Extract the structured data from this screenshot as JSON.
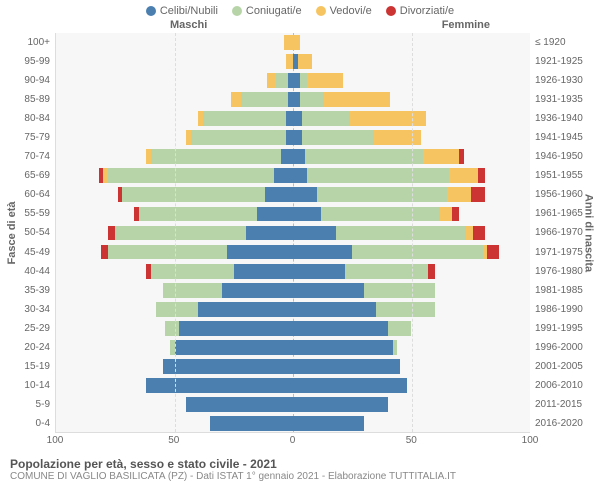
{
  "legend": [
    {
      "label": "Celibi/Nubili",
      "color": "#4a7fb0"
    },
    {
      "label": "Coniugati/e",
      "color": "#b7d4a8"
    },
    {
      "label": "Vedovi/e",
      "color": "#f6c561"
    },
    {
      "label": "Divorziati/e",
      "color": "#cc3333"
    }
  ],
  "side_labels": {
    "left": "Maschi",
    "right": "Femmine"
  },
  "axis_titles": {
    "left": "Fasce di età",
    "right": "Anni di nascita"
  },
  "x_axis": {
    "max": 100,
    "ticks": [
      100,
      50,
      0,
      50,
      100
    ]
  },
  "background_color": "#f7f7f7",
  "grid_color": "#dddddd",
  "center_line_color": "#bbbbbb",
  "footer": {
    "title": "Popolazione per età, sesso e stato civile - 2021",
    "sub": "COMUNE DI VAGLIO BASILICATA (PZ) - Dati ISTAT 1° gennaio 2021 - Elaborazione TUTTITALIA.IT"
  },
  "rows": [
    {
      "age": "100+",
      "birth": "≤ 1920",
      "m": [
        0,
        0,
        4,
        0
      ],
      "f": [
        0,
        0,
        3,
        0
      ]
    },
    {
      "age": "95-99",
      "birth": "1921-1925",
      "m": [
        0,
        0,
        3,
        0
      ],
      "f": [
        2,
        0,
        6,
        0
      ]
    },
    {
      "age": "90-94",
      "birth": "1926-1930",
      "m": [
        2,
        5,
        4,
        0
      ],
      "f": [
        3,
        3,
        15,
        0
      ]
    },
    {
      "age": "85-89",
      "birth": "1931-1935",
      "m": [
        2,
        20,
        4,
        0
      ],
      "f": [
        3,
        10,
        28,
        0
      ]
    },
    {
      "age": "80-84",
      "birth": "1936-1940",
      "m": [
        3,
        35,
        2,
        0
      ],
      "f": [
        4,
        20,
        32,
        0
      ]
    },
    {
      "age": "75-79",
      "birth": "1941-1945",
      "m": [
        3,
        40,
        2,
        0
      ],
      "f": [
        4,
        30,
        20,
        0
      ]
    },
    {
      "age": "70-74",
      "birth": "1946-1950",
      "m": [
        5,
        55,
        2,
        0
      ],
      "f": [
        5,
        50,
        15,
        2
      ]
    },
    {
      "age": "65-69",
      "birth": "1951-1955",
      "m": [
        8,
        70,
        2,
        2
      ],
      "f": [
        6,
        60,
        12,
        3
      ]
    },
    {
      "age": "60-64",
      "birth": "1956-1960",
      "m": [
        12,
        60,
        0,
        2
      ],
      "f": [
        10,
        55,
        10,
        6
      ]
    },
    {
      "age": "55-59",
      "birth": "1961-1965",
      "m": [
        15,
        50,
        0,
        2
      ],
      "f": [
        12,
        50,
        5,
        3
      ]
    },
    {
      "age": "50-54",
      "birth": "1966-1970",
      "m": [
        20,
        55,
        0,
        3
      ],
      "f": [
        18,
        55,
        3,
        5
      ]
    },
    {
      "age": "45-49",
      "birth": "1971-1975",
      "m": [
        28,
        50,
        0,
        3
      ],
      "f": [
        25,
        55,
        2,
        5
      ]
    },
    {
      "age": "40-44",
      "birth": "1976-1980",
      "m": [
        25,
        35,
        0,
        2
      ],
      "f": [
        22,
        35,
        0,
        3
      ]
    },
    {
      "age": "35-39",
      "birth": "1981-1985",
      "m": [
        30,
        25,
        0,
        0
      ],
      "f": [
        30,
        30,
        0,
        0
      ]
    },
    {
      "age": "30-34",
      "birth": "1986-1990",
      "m": [
        40,
        18,
        0,
        0
      ],
      "f": [
        35,
        25,
        0,
        0
      ]
    },
    {
      "age": "25-29",
      "birth": "1991-1995",
      "m": [
        48,
        6,
        0,
        0
      ],
      "f": [
        40,
        10,
        0,
        0
      ]
    },
    {
      "age": "20-24",
      "birth": "1996-2000",
      "m": [
        50,
        2,
        0,
        0
      ],
      "f": [
        42,
        2,
        0,
        0
      ]
    },
    {
      "age": "15-19",
      "birth": "2001-2005",
      "m": [
        55,
        0,
        0,
        0
      ],
      "f": [
        45,
        0,
        0,
        0
      ]
    },
    {
      "age": "10-14",
      "birth": "2006-2010",
      "m": [
        62,
        0,
        0,
        0
      ],
      "f": [
        48,
        0,
        0,
        0
      ]
    },
    {
      "age": "5-9",
      "birth": "2011-2015",
      "m": [
        45,
        0,
        0,
        0
      ],
      "f": [
        40,
        0,
        0,
        0
      ]
    },
    {
      "age": "0-4",
      "birth": "2016-2020",
      "m": [
        35,
        0,
        0,
        0
      ],
      "f": [
        30,
        0,
        0,
        0
      ]
    }
  ]
}
